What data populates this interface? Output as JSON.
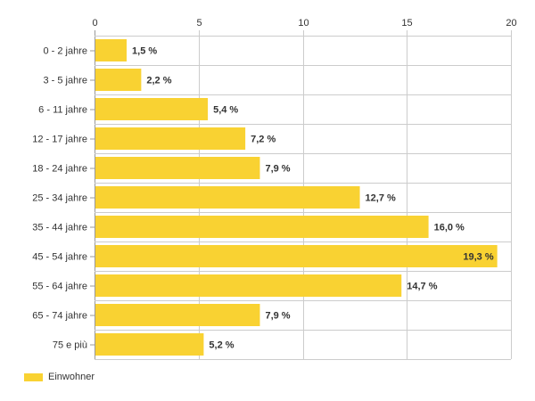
{
  "chart_data": {
    "type": "bar",
    "orientation": "horizontal",
    "categories": [
      "0 - 2 jahre",
      "3 - 5 jahre",
      "6 - 11 jahre",
      "12 - 17 jahre",
      "18 - 24 jahre",
      "25 - 34 jahre",
      "35 - 44 jahre",
      "45 - 54 jahre",
      "55 - 64 jahre",
      "65 - 74 jahre",
      "75 e più"
    ],
    "series": [
      {
        "name": "Einwohner",
        "values": [
          1.5,
          2.2,
          5.4,
          7.2,
          7.9,
          12.7,
          16.0,
          19.3,
          14.7,
          7.9,
          5.2
        ],
        "labels": [
          "1,5 %",
          "2,2 %",
          "5,4 %",
          "7,2 %",
          "7,9 %",
          "12,7 %",
          "16,0 %",
          "19,3 %",
          "14,7 %",
          "7,9 %",
          "5,2 %"
        ]
      }
    ],
    "xlim": [
      0,
      20
    ],
    "xticks": [
      0,
      5,
      10,
      15,
      20
    ],
    "xaxis_position": "top",
    "grid": true,
    "legend_position": "bottom-left",
    "colors": {
      "bar": "#f9d232",
      "grid": "#cccccc",
      "axis": "#999999",
      "text": "#333333"
    }
  }
}
